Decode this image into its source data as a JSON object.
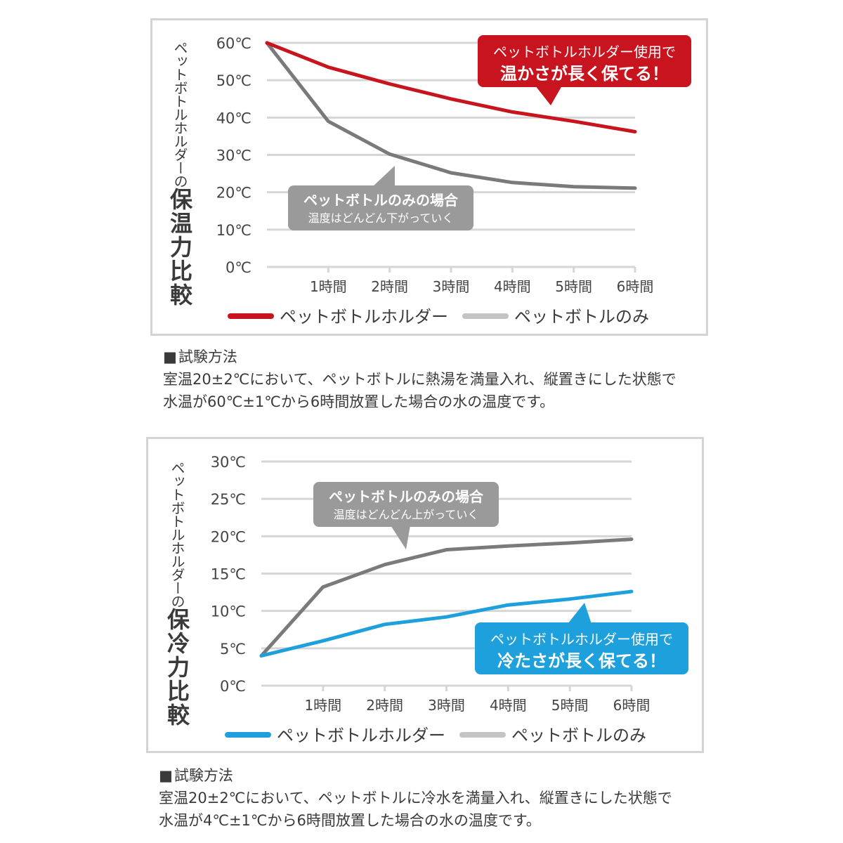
{
  "colors": {
    "holder_hot": "#c8141e",
    "holder_cold": "#1ea0dc",
    "bottle_line": "#7a7a7a",
    "bottle_legend": "#c4c4c4",
    "gray_callout": "#9a9a9a",
    "grid": "#d6d6d6",
    "text": "#333333"
  },
  "chart_data": [
    {
      "type": "line",
      "title": "",
      "ylabel_small": "ペットボトルホルダーの",
      "ylabel_big": "保温力比較",
      "x_ticks": [
        "1時間",
        "2時間",
        "3時間",
        "4時間",
        "5時間",
        "6時間"
      ],
      "x_values": [
        0,
        1,
        2,
        3,
        4,
        5,
        6
      ],
      "y_ticks": [
        "0℃",
        "10℃",
        "20℃",
        "30℃",
        "40℃",
        "50℃",
        "60℃"
      ],
      "y_tick_values": [
        0,
        10,
        20,
        30,
        40,
        50,
        60
      ],
      "ylim": [
        0,
        60
      ],
      "grid": true,
      "legend_position": "bottom",
      "series": [
        {
          "name": "ペットボトルホルダー",
          "values": [
            60,
            53.5,
            49,
            45,
            41.5,
            39,
            36.2
          ]
        },
        {
          "name": "ペットボトルのみ",
          "values": [
            60,
            39,
            30.2,
            25.2,
            22.6,
            21.5,
            21.1
          ]
        }
      ],
      "callouts": {
        "holder": {
          "line1": "ペットボトルホルダー使用で",
          "line2": "温かさが長く保てる！"
        },
        "bottle": {
          "line1": "ペットボトルのみの場合",
          "line2": "温度はどんどん下がっていく"
        }
      }
    },
    {
      "type": "line",
      "title": "",
      "ylabel_small": "ペットボトルホルダーの",
      "ylabel_big": "保冷力比較",
      "x_ticks": [
        "1時間",
        "2時間",
        "3時間",
        "4時間",
        "5時間",
        "6時間"
      ],
      "x_values": [
        0,
        1,
        2,
        3,
        4,
        5,
        6
      ],
      "y_ticks": [
        "0℃",
        "5℃",
        "10℃",
        "15℃",
        "20℃",
        "25℃",
        "30℃"
      ],
      "y_tick_values": [
        0,
        5,
        10,
        15,
        20,
        25,
        30
      ],
      "ylim": [
        0,
        30
      ],
      "grid": true,
      "legend_position": "bottom",
      "series": [
        {
          "name": "ペットボトルホルダー",
          "values": [
            4,
            6,
            8.2,
            9.2,
            10.8,
            11.6,
            12.6
          ]
        },
        {
          "name": "ペットボトルのみ",
          "values": [
            4,
            13.2,
            16.2,
            18.2,
            18.7,
            19.1,
            19.6
          ]
        }
      ],
      "callouts": {
        "holder": {
          "line1": "ペットボトルホルダー使用で",
          "line2": "冷たさが長く保てる！"
        },
        "bottle": {
          "line1": "ペットボトルのみの場合",
          "line2": "温度はどんどん上がっていく"
        }
      }
    }
  ],
  "methods": [
    {
      "title": "試験方法",
      "line1": "室温20±2℃において、ペットボトルに熱湯を満量入れ、縦置きにした状態で",
      "line2": "水温が60℃±1℃から6時間放置した場合の水の温度です。"
    },
    {
      "title": "試験方法",
      "line1": "室温20±2℃において、ペットボトルに冷水を満量入れ、縦置きにした状態で",
      "line2": "水温が4℃±1℃から6時間放置した場合の水の温度です。"
    }
  ]
}
